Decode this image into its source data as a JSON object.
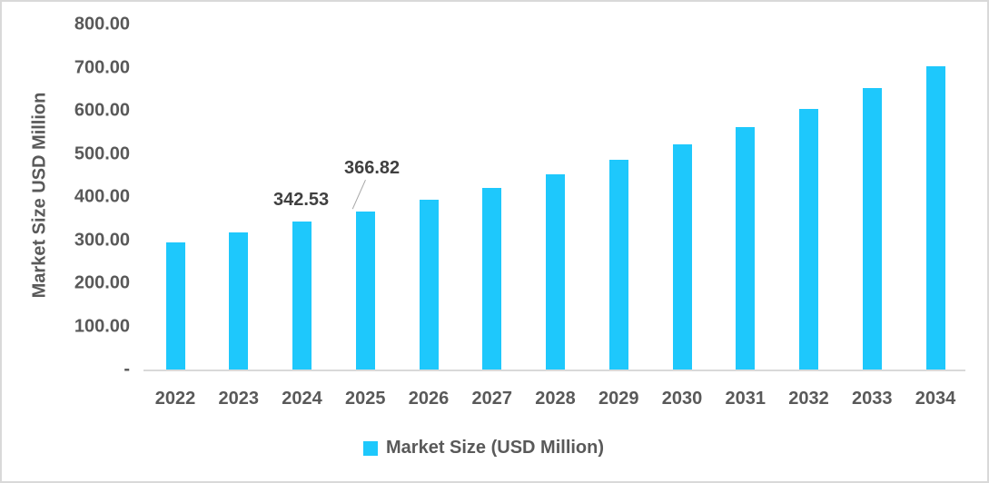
{
  "chart_data": {
    "type": "bar",
    "title": "",
    "xlabel": "",
    "ylabel": "Market Size USD Million",
    "ylim": [
      0,
      800
    ],
    "yticks": [
      "-",
      "100.00",
      "200.00",
      "300.00",
      "400.00",
      "500.00",
      "600.00",
      "700.00",
      "800.00"
    ],
    "categories": [
      "2022",
      "2023",
      "2024",
      "2025",
      "2026",
      "2027",
      "2028",
      "2029",
      "2030",
      "2031",
      "2032",
      "2033",
      "2034"
    ],
    "series": [
      {
        "name": "Market Size (USD Million)",
        "color": "#1ec8fc",
        "values": [
          295,
          318,
          342.53,
          366.82,
          394,
          421,
          453,
          486,
          522,
          562,
          604,
          653,
          703
        ]
      }
    ],
    "annotations": [
      {
        "category": "2024",
        "label": "342.53"
      },
      {
        "category": "2025",
        "label": "366.82"
      }
    ],
    "grid": false,
    "legend_position": "bottom"
  },
  "labels": {
    "ylabel": "Market Size USD Million",
    "legend": "Market Size (USD Million)",
    "annot_2024": "342.53",
    "annot_2025": "366.82"
  }
}
